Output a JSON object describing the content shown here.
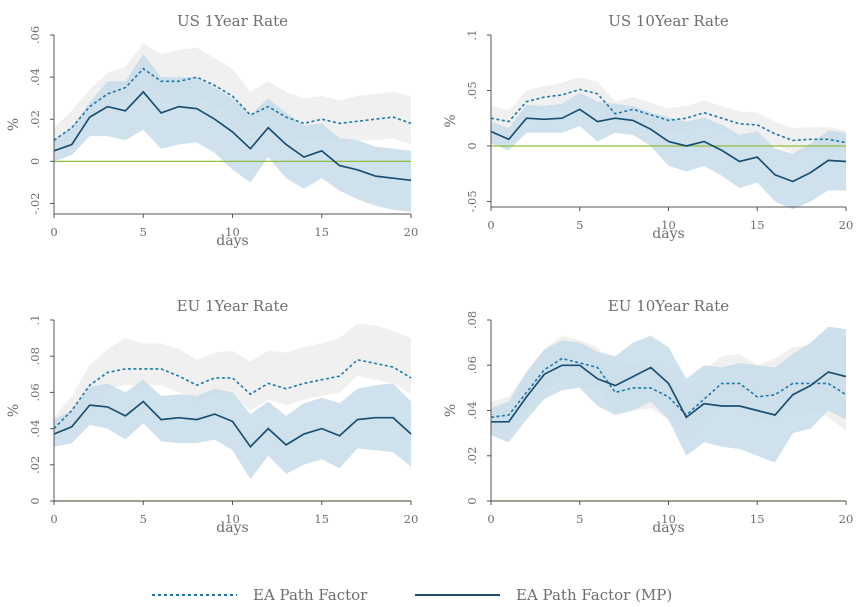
{
  "colors": {
    "mp_line": "#1b4f72",
    "path_line": "#1f7aa8",
    "mp_band": "#c7dcea",
    "path_band": "#eeeeee",
    "zero_line": "#8fbf3f",
    "text": "#6e6e6e",
    "axis": "#555555"
  },
  "legend": {
    "series_1": "EA Path Factor",
    "series_2": "EA Path Factor (MP)"
  },
  "chart_data": [
    {
      "type": "line",
      "title": "US 1Year Rate",
      "xlabel": "days",
      "ylabel": "%",
      "xlim": [
        0,
        20
      ],
      "ylim": [
        -0.025,
        0.06
      ],
      "xticks": [
        0,
        5,
        10,
        15,
        20
      ],
      "xtick_labels": [
        "0",
        "5",
        "10",
        "15",
        "20"
      ],
      "yticks": [
        -0.02,
        0,
        0.02,
        0.04,
        0.06
      ],
      "ytick_labels": [
        "-.02",
        "0",
        ".02",
        ".04",
        ".06"
      ],
      "x": [
        0,
        1,
        2,
        3,
        4,
        5,
        6,
        7,
        8,
        9,
        10,
        11,
        12,
        13,
        14,
        15,
        16,
        17,
        18,
        19,
        20
      ],
      "series": [
        {
          "name": "EA Path Factor",
          "style": "dotted",
          "values": [
            0.01,
            0.016,
            0.026,
            0.032,
            0.035,
            0.044,
            0.038,
            0.038,
            0.04,
            0.036,
            0.031,
            0.022,
            0.026,
            0.021,
            0.018,
            0.02,
            0.018,
            0.019,
            0.02,
            0.021,
            0.018
          ],
          "lower": [
            0.006,
            0.012,
            0.02,
            0.026,
            0.028,
            0.036,
            0.03,
            0.03,
            0.031,
            0.027,
            0.022,
            0.013,
            0.017,
            0.012,
            0.009,
            0.011,
            0.009,
            0.01,
            0.01,
            0.011,
            0.008
          ],
          "upper": [
            0.016,
            0.024,
            0.034,
            0.042,
            0.045,
            0.056,
            0.051,
            0.053,
            0.054,
            0.049,
            0.044,
            0.033,
            0.038,
            0.033,
            0.03,
            0.031,
            0.029,
            0.031,
            0.032,
            0.033,
            0.031
          ]
        },
        {
          "name": "EA Path Factor (MP)",
          "style": "solid",
          "values": [
            0.005,
            0.008,
            0.021,
            0.026,
            0.024,
            0.033,
            0.023,
            0.026,
            0.025,
            0.02,
            0.014,
            0.006,
            0.016,
            0.008,
            0.002,
            0.005,
            -0.002,
            -0.004,
            -0.007,
            -0.008,
            -0.009
          ],
          "lower": [
            0.0,
            0.003,
            0.012,
            0.012,
            0.01,
            0.015,
            0.006,
            0.008,
            0.009,
            0.004,
            -0.004,
            -0.01,
            0.002,
            -0.008,
            -0.013,
            -0.008,
            -0.014,
            -0.018,
            -0.021,
            -0.023,
            -0.024
          ],
          "upper": [
            0.01,
            0.016,
            0.028,
            0.038,
            0.038,
            0.051,
            0.04,
            0.04,
            0.04,
            0.035,
            0.03,
            0.022,
            0.03,
            0.023,
            0.017,
            0.018,
            0.011,
            0.01,
            0.007,
            0.006,
            0.005
          ]
        }
      ]
    },
    {
      "type": "line",
      "title": "US 10Year Rate",
      "xlabel": "days",
      "ylabel": "%",
      "xlim": [
        0,
        20
      ],
      "ylim": [
        -0.055,
        0.1
      ],
      "xticks": [
        0,
        5,
        10,
        15,
        20
      ],
      "xtick_labels": [
        "0",
        "5",
        "10",
        "15",
        "20"
      ],
      "yticks": [
        -0.05,
        0,
        0.05,
        0.1
      ],
      "ytick_labels": [
        "-.05",
        "0",
        ".05",
        ".1"
      ],
      "x": [
        0,
        1,
        2,
        3,
        4,
        5,
        6,
        7,
        8,
        9,
        10,
        11,
        12,
        13,
        14,
        15,
        16,
        17,
        18,
        19,
        20
      ],
      "series": [
        {
          "name": "EA Path Factor",
          "style": "dotted",
          "values": [
            0.025,
            0.022,
            0.04,
            0.044,
            0.046,
            0.051,
            0.047,
            0.029,
            0.033,
            0.028,
            0.023,
            0.025,
            0.03,
            0.025,
            0.02,
            0.019,
            0.011,
            0.005,
            0.006,
            0.006,
            0.003
          ],
          "lower": [
            0.014,
            0.012,
            0.03,
            0.034,
            0.036,
            0.04,
            0.036,
            0.018,
            0.022,
            0.017,
            0.012,
            0.014,
            0.019,
            0.014,
            0.009,
            0.008,
            0.0,
            -0.006,
            -0.005,
            -0.005,
            -0.008
          ],
          "upper": [
            0.036,
            0.032,
            0.05,
            0.054,
            0.057,
            0.062,
            0.058,
            0.04,
            0.044,
            0.039,
            0.034,
            0.036,
            0.041,
            0.036,
            0.031,
            0.03,
            0.022,
            0.016,
            0.017,
            0.017,
            0.014
          ]
        },
        {
          "name": "EA Path Factor (MP)",
          "style": "solid",
          "values": [
            0.013,
            0.006,
            0.025,
            0.024,
            0.025,
            0.033,
            0.022,
            0.025,
            0.023,
            0.015,
            0.004,
            0.0,
            0.004,
            -0.004,
            -0.014,
            -0.01,
            -0.026,
            -0.032,
            -0.024,
            -0.013,
            -0.014
          ],
          "lower": [
            0.002,
            -0.004,
            0.012,
            0.012,
            0.012,
            0.018,
            0.004,
            0.012,
            0.01,
            0.0,
            -0.018,
            -0.023,
            -0.018,
            -0.027,
            -0.038,
            -0.033,
            -0.05,
            -0.057,
            -0.05,
            -0.04,
            -0.04
          ],
          "upper": [
            0.022,
            0.016,
            0.037,
            0.036,
            0.038,
            0.048,
            0.04,
            0.038,
            0.036,
            0.03,
            0.026,
            0.022,
            0.026,
            0.019,
            0.01,
            0.013,
            -0.002,
            -0.007,
            0.002,
            0.014,
            0.012
          ]
        }
      ]
    },
    {
      "type": "line",
      "title": "EU 1Year Rate",
      "xlabel": "days",
      "ylabel": "%",
      "xlim": [
        0,
        20
      ],
      "ylim": [
        0,
        0.1
      ],
      "xticks": [
        0,
        5,
        10,
        15,
        20
      ],
      "xtick_labels": [
        "0",
        "5",
        "10",
        "15",
        "20"
      ],
      "yticks": [
        0,
        0.02,
        0.04,
        0.06,
        0.08,
        0.1
      ],
      "ytick_labels": [
        "0",
        ".02",
        ".04",
        ".06",
        ".08",
        ".1"
      ],
      "x": [
        0,
        1,
        2,
        3,
        4,
        5,
        6,
        7,
        8,
        9,
        10,
        11,
        12,
        13,
        14,
        15,
        16,
        17,
        18,
        19,
        20
      ],
      "series": [
        {
          "name": "EA Path Factor",
          "style": "dotted",
          "values": [
            0.04,
            0.05,
            0.064,
            0.071,
            0.073,
            0.073,
            0.073,
            0.069,
            0.064,
            0.068,
            0.068,
            0.059,
            0.065,
            0.062,
            0.065,
            0.067,
            0.069,
            0.078,
            0.076,
            0.074,
            0.068
          ],
          "lower": [
            0.033,
            0.042,
            0.055,
            0.062,
            0.064,
            0.064,
            0.064,
            0.06,
            0.055,
            0.059,
            0.059,
            0.05,
            0.056,
            0.053,
            0.056,
            0.058,
            0.06,
            0.069,
            0.067,
            0.065,
            0.059
          ],
          "upper": [
            0.046,
            0.058,
            0.075,
            0.084,
            0.09,
            0.087,
            0.087,
            0.084,
            0.078,
            0.082,
            0.083,
            0.077,
            0.083,
            0.082,
            0.085,
            0.087,
            0.09,
            0.098,
            0.097,
            0.094,
            0.09
          ]
        },
        {
          "name": "EA Path Factor (MP)",
          "style": "solid",
          "values": [
            0.037,
            0.041,
            0.053,
            0.052,
            0.047,
            0.055,
            0.045,
            0.046,
            0.045,
            0.048,
            0.044,
            0.03,
            0.04,
            0.031,
            0.037,
            0.04,
            0.036,
            0.045,
            0.046,
            0.046,
            0.037
          ],
          "lower": [
            0.03,
            0.032,
            0.042,
            0.04,
            0.034,
            0.043,
            0.033,
            0.032,
            0.032,
            0.034,
            0.028,
            0.012,
            0.025,
            0.015,
            0.02,
            0.023,
            0.018,
            0.029,
            0.028,
            0.027,
            0.019
          ],
          "upper": [
            0.045,
            0.05,
            0.063,
            0.065,
            0.06,
            0.067,
            0.058,
            0.059,
            0.058,
            0.062,
            0.06,
            0.048,
            0.055,
            0.047,
            0.054,
            0.057,
            0.054,
            0.062,
            0.064,
            0.065,
            0.055
          ]
        }
      ]
    },
    {
      "type": "line",
      "title": "EU 10Year Rate",
      "xlabel": "days",
      "ylabel": "%",
      "xlim": [
        0,
        20
      ],
      "ylim": [
        0,
        0.08
      ],
      "xticks": [
        0,
        5,
        10,
        15,
        20
      ],
      "xtick_labels": [
        "0",
        "5",
        "10",
        "15",
        "20"
      ],
      "yticks": [
        0,
        0.02,
        0.04,
        0.06,
        0.08
      ],
      "ytick_labels": [
        "0",
        ".02",
        ".04",
        ".06",
        ".08"
      ],
      "x": [
        0,
        1,
        2,
        3,
        4,
        5,
        6,
        7,
        8,
        9,
        10,
        11,
        12,
        13,
        14,
        15,
        16,
        17,
        18,
        19,
        20
      ],
      "series": [
        {
          "name": "EA Path Factor",
          "style": "dotted",
          "values": [
            0.037,
            0.038,
            0.048,
            0.058,
            0.063,
            0.061,
            0.059,
            0.048,
            0.05,
            0.05,
            0.046,
            0.038,
            0.045,
            0.052,
            0.052,
            0.046,
            0.047,
            0.052,
            0.052,
            0.052,
            0.047
          ],
          "lower": [
            0.03,
            0.031,
            0.04,
            0.049,
            0.053,
            0.051,
            0.05,
            0.039,
            0.04,
            0.041,
            0.036,
            0.029,
            0.036,
            0.042,
            0.043,
            0.036,
            0.037,
            0.041,
            0.04,
            0.037,
            0.031
          ],
          "upper": [
            0.044,
            0.046,
            0.057,
            0.067,
            0.073,
            0.071,
            0.068,
            0.058,
            0.061,
            0.062,
            0.058,
            0.05,
            0.058,
            0.064,
            0.065,
            0.06,
            0.063,
            0.068,
            0.069,
            0.073,
            0.074
          ]
        },
        {
          "name": "EA Path Factor (MP)",
          "style": "solid",
          "values": [
            0.035,
            0.035,
            0.046,
            0.056,
            0.06,
            0.06,
            0.054,
            0.051,
            0.055,
            0.059,
            0.052,
            0.037,
            0.043,
            0.042,
            0.042,
            0.04,
            0.038,
            0.047,
            0.051,
            0.057,
            0.055
          ],
          "lower": [
            0.029,
            0.026,
            0.036,
            0.045,
            0.049,
            0.05,
            0.042,
            0.038,
            0.04,
            0.044,
            0.036,
            0.02,
            0.026,
            0.024,
            0.023,
            0.02,
            0.017,
            0.03,
            0.032,
            0.04,
            0.036
          ],
          "upper": [
            0.041,
            0.044,
            0.057,
            0.067,
            0.071,
            0.07,
            0.066,
            0.064,
            0.07,
            0.073,
            0.068,
            0.054,
            0.06,
            0.059,
            0.061,
            0.06,
            0.059,
            0.065,
            0.07,
            0.077,
            0.076
          ]
        }
      ]
    }
  ]
}
